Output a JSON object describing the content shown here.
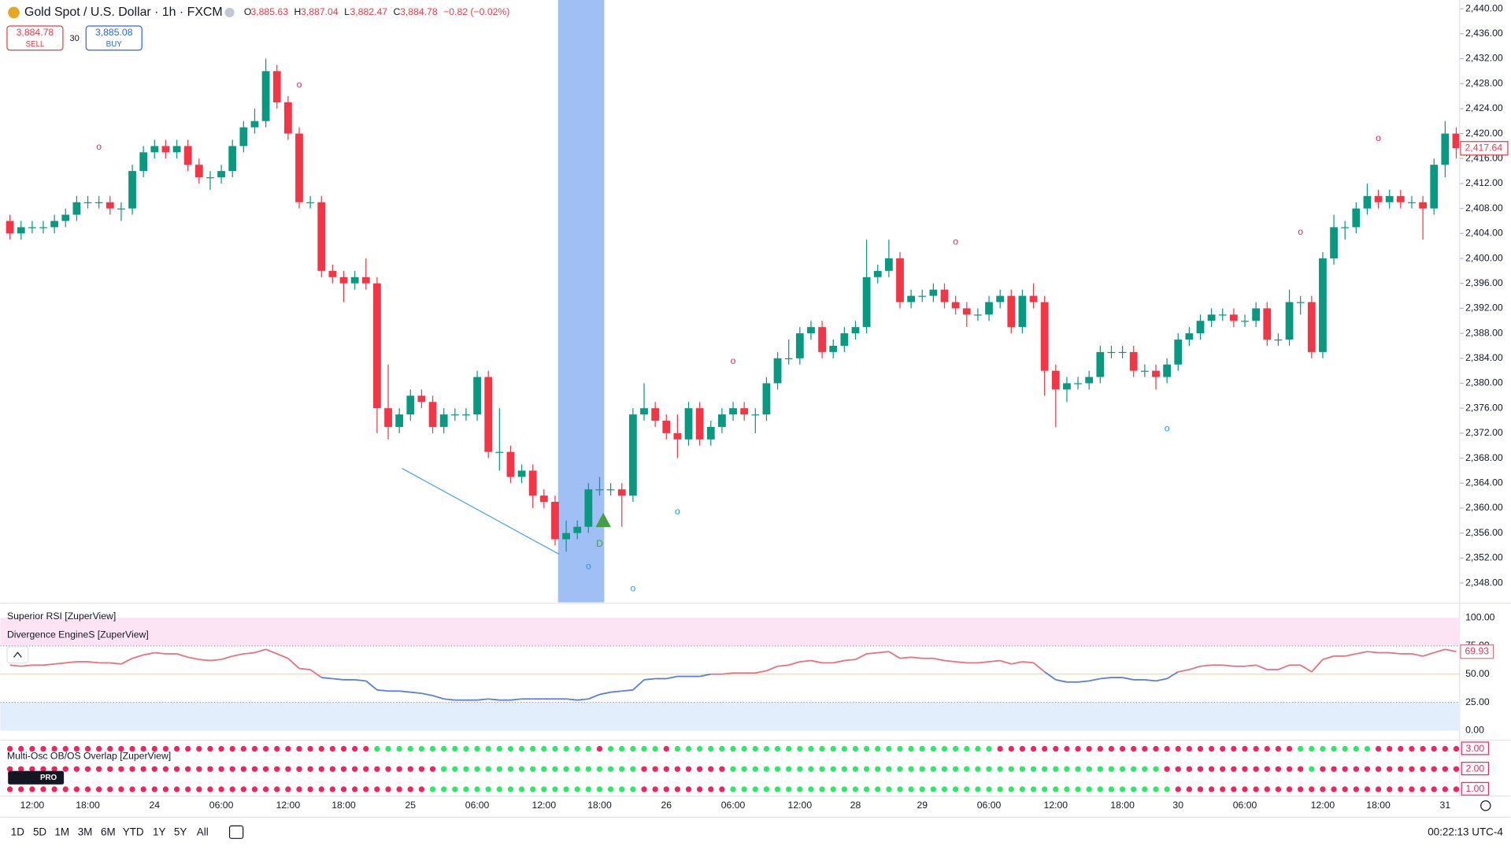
{
  "header": {
    "symbol": "Gold Spot / U.S. Dollar · 1h · FXCM",
    "ohlc": [
      {
        "key": "O",
        "value": "3,885.63"
      },
      {
        "key": "H",
        "value": "3,887.04"
      },
      {
        "key": "L",
        "value": "3,882.47"
      },
      {
        "key": "C",
        "value": "3,884.78"
      }
    ],
    "change": "−0.82 (−0.02%)",
    "sell": {
      "price": "3,884.78",
      "label": "SELL"
    },
    "spread": "30",
    "buy": {
      "price": "3,885.08",
      "label": "BUY"
    },
    "badge": "PRO"
  },
  "toolbar": {
    "ranges": [
      "1D",
      "5D",
      "1M",
      "3M",
      "6M",
      "YTD",
      "1Y",
      "5Y",
      "All"
    ],
    "clock": "00:22:13 UTC-4"
  },
  "chart_data": [
    {
      "type": "candlestick",
      "up_color": "#089981",
      "down_color": "#f23645",
      "open": [
        2406,
        2404,
        2405,
        2405,
        2405,
        2406,
        2407,
        2409,
        2409,
        2409,
        2408,
        2408,
        2414,
        2417,
        2418,
        2417,
        2418,
        2415,
        2413,
        2413,
        2414,
        2418,
        2421,
        2422,
        2430,
        2425,
        2420,
        2409,
        2409,
        2398,
        2397,
        2396,
        2397,
        2396,
        2376,
        2373,
        2375,
        2378,
        2377,
        2373,
        2375,
        2375,
        2375,
        2381,
        2369,
        2369,
        2365,
        2366,
        2362,
        2361,
        2355,
        2356,
        2357,
        2363,
        2363,
        2363,
        2362,
        2375,
        2376,
        2374,
        2372,
        2371,
        2376,
        2371,
        2373,
        2375,
        2376,
        2375,
        2375,
        2380,
        2384,
        2384,
        2388,
        2389,
        2385,
        2386,
        2388,
        2389,
        2397,
        2398,
        2400,
        2393,
        2394,
        2394,
        2395,
        2393,
        2392,
        2391,
        2391,
        2393,
        2394,
        2389,
        2394,
        2393,
        2382,
        2379,
        2380,
        2380,
        2381,
        2385,
        2385,
        2385,
        2382,
        2382,
        2381,
        2383,
        2387,
        2388,
        2390,
        2391,
        2391,
        2390,
        2390,
        2392,
        2387,
        2387,
        2393,
        2393,
        2385,
        2400,
        2405,
        2405,
        2408,
        2410,
        2409,
        2410,
        2409,
        2409,
        2408,
        2415,
        2420
      ],
      "high": [
        2407,
        2406,
        2406,
        2406,
        2407,
        2408,
        2410,
        2410,
        2410,
        2410,
        2409,
        2415,
        2418,
        2419,
        2419,
        2419,
        2419,
        2416,
        2414,
        2415,
        2419,
        2422,
        2424,
        2432,
        2431,
        2426,
        2421,
        2410,
        2410,
        2399,
        2398,
        2398,
        2400,
        2397,
        2383,
        2376,
        2379,
        2379,
        2378,
        2376,
        2376,
        2376,
        2382,
        2382,
        2376,
        2370,
        2367,
        2367,
        2363,
        2362,
        2358,
        2358,
        2364,
        2365,
        2364,
        2364,
        2376,
        2380,
        2377,
        2375,
        2375,
        2377,
        2377,
        2374,
        2376,
        2377,
        2377,
        2376,
        2381,
        2385,
        2387,
        2389,
        2390,
        2390,
        2387,
        2389,
        2390,
        2403,
        2399,
        2403,
        2401,
        2395,
        2395,
        2396,
        2396,
        2394,
        2393,
        2392,
        2394,
        2395,
        2395,
        2395,
        2396,
        2394,
        2383,
        2381,
        2381,
        2382,
        2386,
        2386,
        2386,
        2386,
        2383,
        2383,
        2384,
        2388,
        2389,
        2391,
        2392,
        2392,
        2392,
        2391,
        2393,
        2393,
        2388,
        2395,
        2394,
        2394,
        2401,
        2407,
        2406,
        2409,
        2412,
        2411,
        2411,
        2411,
        2410,
        2410,
        2416,
        2422,
        2421
      ],
      "low": [
        2403,
        2403,
        2404,
        2404,
        2404,
        2405,
        2406,
        2408,
        2408,
        2407,
        2406,
        2407,
        2413,
        2416,
        2416,
        2416,
        2414,
        2412,
        2411,
        2412,
        2413,
        2417,
        2420,
        2421,
        2424,
        2419,
        2408,
        2408,
        2397,
        2396,
        2393,
        2395,
        2395,
        2372,
        2371,
        2372,
        2374,
        2376,
        2372,
        2372,
        2374,
        2374,
        2374,
        2368,
        2366,
        2364,
        2364,
        2360,
        2360,
        2354,
        2353,
        2355,
        2356,
        2362,
        2362,
        2357,
        2361,
        2374,
        2373,
        2371,
        2368,
        2370,
        2370,
        2370,
        2372,
        2374,
        2374,
        2372,
        2374,
        2379,
        2383,
        2383,
        2387,
        2384,
        2384,
        2385,
        2387,
        2388,
        2396,
        2397,
        2392,
        2392,
        2393,
        2393,
        2392,
        2391,
        2389,
        2390,
        2390,
        2392,
        2388,
        2388,
        2392,
        2378,
        2373,
        2377,
        2379,
        2379,
        2380,
        2384,
        2384,
        2381,
        2381,
        2379,
        2380,
        2382,
        2386,
        2387,
        2389,
        2390,
        2389,
        2389,
        2389,
        2386,
        2386,
        2386,
        2391,
        2384,
        2384,
        2399,
        2403,
        2404,
        2407,
        2408,
        2408,
        2408,
        2408,
        2403,
        2407,
        2413,
        2416
      ],
      "close": [
        2404,
        2405,
        2405,
        2405,
        2406,
        2407,
        2409,
        2409,
        2409,
        2408,
        2408,
        2414,
        2417,
        2418,
        2417,
        2418,
        2415,
        2413,
        2413,
        2414,
        2418,
        2421,
        2422,
        2430,
        2425,
        2420,
        2409,
        2409,
        2398,
        2397,
        2396,
        2397,
        2396,
        2376,
        2373,
        2375,
        2378,
        2377,
        2373,
        2375,
        2375,
        2375,
        2381,
        2369,
        2369,
        2365,
        2366,
        2362,
        2361,
        2355,
        2356,
        2357,
        2363,
        2363,
        2363,
        2362,
        2375,
        2376,
        2374,
        2372,
        2371,
        2376,
        2371,
        2373,
        2375,
        2376,
        2375,
        2375,
        2380,
        2384,
        2384,
        2388,
        2389,
        2385,
        2386,
        2388,
        2389,
        2397,
        2398,
        2400,
        2393,
        2394,
        2394,
        2395,
        2393,
        2392,
        2391,
        2391,
        2393,
        2394,
        2389,
        2394,
        2393,
        2382,
        2379,
        2380,
        2380,
        2381,
        2385,
        2385,
        2385,
        2382,
        2382,
        2381,
        2383,
        2387,
        2388,
        2390,
        2391,
        2391,
        2390,
        2390,
        2392,
        2387,
        2387,
        2393,
        2393,
        2385,
        2400,
        2405,
        2405,
        2408,
        2410,
        2409,
        2410,
        2409,
        2409,
        2408,
        2415,
        2420,
        2417.64
      ],
      "last_label": "2,417.64",
      "ylim": [
        2344.9,
        2441.4
      ],
      "yticks": [
        {
          "value": 2348,
          "label": "2,348.00"
        },
        {
          "value": 2352,
          "label": "2,352.00"
        },
        {
          "value": 2356,
          "label": "2,356.00"
        },
        {
          "value": 2360,
          "label": "2,360.00"
        },
        {
          "value": 2364,
          "label": "2,364.00"
        },
        {
          "value": 2368,
          "label": "2,368.00"
        },
        {
          "value": 2372,
          "label": "2,372.00"
        },
        {
          "value": 2376,
          "label": "2,376.00"
        },
        {
          "value": 2380,
          "label": "2,380.00"
        },
        {
          "value": 2384,
          "label": "2,384.00"
        },
        {
          "value": 2388,
          "label": "2,388.00"
        },
        {
          "value": 2392,
          "label": "2,392.00"
        },
        {
          "value": 2396,
          "label": "2,396.00"
        },
        {
          "value": 2400,
          "label": "2,400.00"
        },
        {
          "value": 2404,
          "label": "2,404.00"
        },
        {
          "value": 2408,
          "label": "2,408.00"
        },
        {
          "value": 2412,
          "label": "2,412.00"
        },
        {
          "value": 2416,
          "label": "2,416.00"
        },
        {
          "value": 2420,
          "label": "2,420.00"
        },
        {
          "value": 2424,
          "label": "2,424.00"
        },
        {
          "value": 2428,
          "label": "2,428.00"
        },
        {
          "value": 2432,
          "label": "2,432.00"
        },
        {
          "value": 2436,
          "label": "2,436.00"
        },
        {
          "value": 2440,
          "label": "2,440.00"
        }
      ],
      "xticks": [
        {
          "value": 2,
          "label": "12:00"
        },
        {
          "value": 7,
          "label": "18:00"
        },
        {
          "value": 13,
          "label": "24"
        },
        {
          "value": 19,
          "label": "06:00"
        },
        {
          "value": 25,
          "label": "12:00"
        },
        {
          "value": 30,
          "label": "18:00"
        },
        {
          "value": 36,
          "label": "25"
        },
        {
          "value": 42,
          "label": "06:00"
        },
        {
          "value": 48,
          "label": "12:00"
        },
        {
          "value": 53,
          "label": "18:00"
        },
        {
          "value": 59,
          "label": "26"
        },
        {
          "value": 65,
          "label": "06:00"
        },
        {
          "value": 71,
          "label": "12:00"
        },
        {
          "value": 76,
          "label": "28"
        },
        {
          "value": 82,
          "label": "29"
        },
        {
          "value": 88,
          "label": "06:00"
        },
        {
          "value": 94,
          "label": "12:00"
        },
        {
          "value": 100,
          "label": "18:00"
        },
        {
          "value": 105,
          "label": "30"
        },
        {
          "value": 111,
          "label": "06:00"
        },
        {
          "value": 118,
          "label": "12:00"
        },
        {
          "value": 123,
          "label": "18:00"
        },
        {
          "value": 129,
          "label": "31"
        }
      ],
      "markers": [
        {
          "text": "o",
          "index": 8,
          "price": 2417.8,
          "color": "#e91e63"
        },
        {
          "text": "o",
          "index": 26,
          "price": 2427.8,
          "color": "#e91e63"
        },
        {
          "text": "o",
          "index": 65,
          "price": 2383.5,
          "color": "#e91e63"
        },
        {
          "text": "o",
          "index": 85,
          "price": 2402.6,
          "color": "#e91e63"
        },
        {
          "text": "o",
          "index": 116,
          "price": 2404.2,
          "color": "#e91e63"
        },
        {
          "text": "o",
          "index": 123,
          "price": 2419.2,
          "color": "#e91e63"
        },
        {
          "text": "o",
          "index": 60,
          "price": 2359.4,
          "color": "#2196f3"
        },
        {
          "text": "o",
          "index": 52,
          "price": 2350.6,
          "color": "#2196f3"
        },
        {
          "text": "o",
          "index": 56,
          "price": 2347.1,
          "color": "#2196f3"
        },
        {
          "text": "o",
          "index": 104,
          "price": 2372.7,
          "color": "#2196f3"
        },
        {
          "text": "D",
          "index": 53,
          "price": 2354.2,
          "color": "#43a047"
        }
      ]
    },
    {
      "type": "line",
      "title": "Superior RSI [ZuperView]",
      "subtitle": "Divergence EngineS [ZuperView]",
      "above_color": "#e57383",
      "below_color": "#5b7fe0",
      "zone_color_high": "#fce4f4",
      "zone_color_low": "#e3eefc",
      "mid_color": "#f5d99a",
      "values": [
        58,
        57,
        58,
        58,
        59,
        60,
        61,
        61,
        60,
        60,
        59,
        64,
        67,
        69,
        68,
        68,
        65,
        63,
        62,
        63,
        66,
        68,
        69,
        72,
        68,
        64,
        55,
        54,
        47,
        46,
        45,
        45,
        44,
        36,
        35,
        35,
        34,
        33,
        31,
        28,
        27,
        27,
        27,
        28,
        27,
        27,
        28,
        28,
        28,
        28,
        28,
        27,
        28,
        32,
        34,
        35,
        36,
        45,
        46,
        46,
        48,
        48,
        48,
        50,
        50,
        51,
        51,
        51,
        53,
        57,
        58,
        61,
        62,
        60,
        60,
        62,
        63,
        68,
        69,
        70,
        64,
        65,
        64,
        64,
        62,
        61,
        60,
        60,
        61,
        62,
        59,
        61,
        60,
        52,
        45,
        43,
        43,
        44,
        46,
        47,
        47,
        45,
        45,
        44,
        46,
        52,
        54,
        57,
        58,
        58,
        57,
        57,
        58,
        54,
        54,
        58,
        58,
        52,
        63,
        66,
        66,
        68,
        70,
        69,
        69,
        68,
        68,
        66,
        69,
        72,
        69.93
      ],
      "last_label": "69.93",
      "ylim": [
        -8.5,
        111.1
      ],
      "yticks": [
        {
          "value": 0,
          "label": "0.00"
        },
        {
          "value": 25,
          "label": "25.00"
        },
        {
          "value": 50,
          "label": "50.00"
        },
        {
          "value": 75,
          "label": "75.00"
        },
        {
          "value": 100,
          "label": "100.00"
        }
      ]
    },
    {
      "type": "dots",
      "title": "Multi-Osc OB/OS Overlap [ZuperView]",
      "colors": [
        "#f0245e",
        "#2ee86a"
      ],
      "rows": [
        {
          "value": 3,
          "label": "3.00",
          "runs": [
            [
              0,
              33
            ],
            [
              1,
              20
            ],
            [
              0,
              1
            ],
            [
              1,
              5
            ],
            [
              0,
              1
            ],
            [
              1,
              29
            ],
            [
              0,
              27
            ],
            [
              1,
              7
            ],
            [
              0,
              8
            ]
          ]
        },
        {
          "value": 2,
          "label": "2.00",
          "runs": [
            [
              0,
              39
            ],
            [
              1,
              18
            ],
            [
              0,
              8
            ],
            [
              1,
              39
            ],
            [
              0,
              13
            ],
            [
              1,
              1
            ],
            [
              0,
              13
            ]
          ]
        },
        {
          "value": 1,
          "label": "1.00",
          "runs": [
            [
              0,
              38
            ],
            [
              1,
              19
            ],
            [
              0,
              8
            ],
            [
              1,
              40
            ],
            [
              0,
              26
            ]
          ]
        }
      ]
    }
  ]
}
